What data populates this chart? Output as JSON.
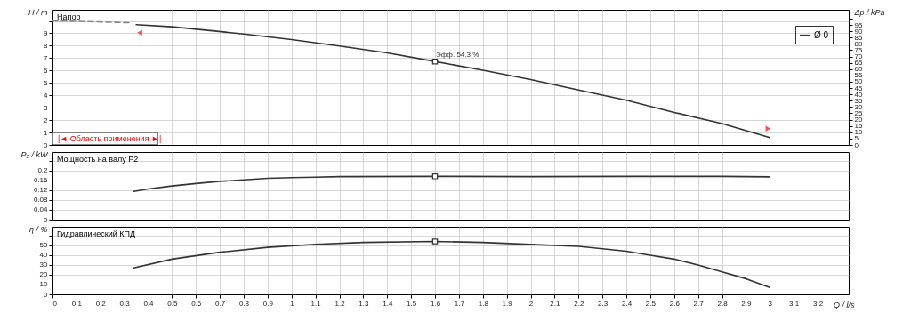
{
  "chart_data": [
    {
      "type": "line",
      "ylabel": "H / m",
      "y2label": "Δp / kPa",
      "xlim": [
        0,
        3.33
      ],
      "xticks": [
        0,
        0.1,
        0.2,
        0.3,
        0.4,
        0.5,
        0.6,
        0.7,
        0.8,
        0.9,
        1,
        1.1,
        1.2,
        1.3,
        1.4,
        1.5,
        1.6,
        1.7,
        1.8,
        1.9,
        2,
        2.1,
        2.2,
        2.3,
        2.4,
        2.5,
        2.6,
        2.7,
        2.8,
        2.9,
        3,
        3.1,
        3.2
      ],
      "ylim": [
        0,
        10.9
      ],
      "yticks": [
        0,
        1,
        2,
        3,
        4,
        5,
        6,
        7,
        8,
        9,
        {
          "value": 10,
          "label": null
        }
      ],
      "y2lim": [
        0,
        107
      ],
      "y2ticks": [
        0,
        5,
        10,
        15,
        20,
        25,
        30,
        35,
        40,
        45,
        50,
        55,
        60,
        65,
        70,
        75,
        80,
        85,
        90,
        95,
        {
          "value": 100,
          "label": null
        }
      ],
      "grid": true,
      "legend": "top right",
      "tick_labels": "y",
      "annotations": [
        "Напор",
        "|◄ Область применения ►|",
        {
          "text": "Эфф. 54.3 %",
          "x": 1.6,
          "y": 6.73
        }
      ],
      "series": [
        {
          "color": "#888888",
          "line_style": "dashed",
          "x": [
            0,
            0.1,
            0.2,
            0.33
          ],
          "values": [
            10.0,
            9.97,
            9.92,
            9.85
          ]
        },
        {
          "name": "Ø 0",
          "color": "#333333",
          "x": [
            0.35,
            0.5,
            0.8,
            1.0,
            1.2,
            1.4,
            1.6,
            1.8,
            2.0,
            2.2,
            2.4,
            2.6,
            2.8,
            3.0
          ],
          "values": [
            9.7,
            9.53,
            8.95,
            8.5,
            7.98,
            7.42,
            6.73,
            6.02,
            5.27,
            4.43,
            3.6,
            2.62,
            1.72,
            0.59
          ]
        },
        {
          "type": "scatter",
          "marker": "square",
          "color": "#333333",
          "x": [
            1.6
          ],
          "values": [
            6.73
          ]
        }
      ]
    },
    {
      "type": "line",
      "ylabel": "P₂ / kW",
      "xlim": [
        0,
        3.33
      ],
      "xticks": [
        0,
        0.1,
        0.2,
        0.3,
        0.4,
        0.5,
        0.6,
        0.7,
        0.8,
        0.9,
        1,
        1.1,
        1.2,
        1.3,
        1.4,
        1.5,
        1.6,
        1.7,
        1.8,
        1.9,
        2,
        2.1,
        2.2,
        2.3,
        2.4,
        2.5,
        2.6,
        2.7,
        2.8,
        2.9,
        3,
        3.1,
        3.2
      ],
      "ylim": [
        0,
        0.275
      ],
      "yticks": [
        0,
        0.04,
        0.08,
        0.12,
        0.16,
        0.2,
        {
          "value": 0.24,
          "label": null
        }
      ],
      "grid": true,
      "tick_labels": "y",
      "annotations": [
        "Мощность на валу P2"
      ],
      "series": [
        {
          "color": "#333333",
          "x": [
            0.34,
            0.4,
            0.5,
            0.6,
            0.7,
            0.8,
            0.9,
            1.0,
            1.1,
            1.2,
            1.6,
            2.0,
            2.4,
            2.8,
            3.0
          ],
          "values": [
            0.115,
            0.125,
            0.137,
            0.147,
            0.156,
            0.162,
            0.168,
            0.171,
            0.173,
            0.175,
            0.176,
            0.175,
            0.176,
            0.176,
            0.174
          ]
        },
        {
          "type": "scatter",
          "marker": "square",
          "color": "#333333",
          "x": [
            1.6
          ],
          "values": [
            0.176
          ]
        }
      ]
    },
    {
      "type": "line",
      "ylabel": "η / %",
      "xlabel": "Q / l/s",
      "xlim": [
        0,
        3.33
      ],
      "xticks": [
        0,
        0.1,
        0.2,
        0.3,
        0.4,
        0.5,
        0.6,
        0.7,
        0.8,
        0.9,
        1,
        1.1,
        1.2,
        1.3,
        1.4,
        1.5,
        1.6,
        1.7,
        1.8,
        1.9,
        2,
        2.1,
        2.2,
        2.3,
        2.4,
        2.5,
        2.6,
        2.7,
        2.8,
        2.9,
        3,
        3.1,
        3.2
      ],
      "ylim": [
        0,
        69
      ],
      "yticks": [
        0,
        10,
        20,
        30,
        40,
        50,
        {
          "value": 60,
          "label": null
        }
      ],
      "grid": true,
      "annotations": [
        "Гидравлический КПД"
      ],
      "series": [
        {
          "color": "#333333",
          "x": [
            0.34,
            0.5,
            0.7,
            0.9,
            1.1,
            1.3,
            1.6,
            1.8,
            2.0,
            2.2,
            2.4,
            2.5,
            2.6,
            2.7,
            2.8,
            2.9,
            3.0
          ],
          "values": [
            27,
            36,
            43,
            48,
            51,
            53,
            54,
            53,
            51,
            49,
            44,
            40,
            36,
            30,
            23,
            16,
            7
          ]
        },
        {
          "type": "scatter",
          "marker": "square",
          "color": "#333333",
          "x": [
            1.6
          ],
          "values": [
            54
          ]
        }
      ]
    }
  ]
}
